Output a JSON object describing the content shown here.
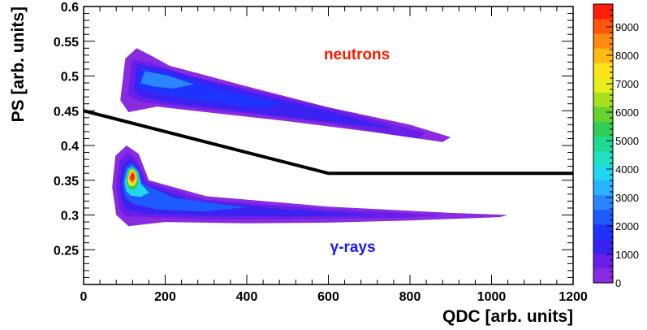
{
  "chart_data": {
    "type": "heatmap",
    "title": "",
    "xlabel": "QDC [arb. units]",
    "ylabel": "PS [arb. units]",
    "xlim": [
      0,
      1200
    ],
    "ylim": [
      0.2,
      0.6
    ],
    "x_ticks": [
      0,
      200,
      400,
      600,
      800,
      1000,
      1200
    ],
    "y_ticks": [
      0.25,
      0.3,
      0.35,
      0.4,
      0.45,
      0.5,
      0.55,
      0.6
    ],
    "x_tick_labels": [
      "0",
      "200",
      "400",
      "600",
      "800",
      "1000",
      "1200"
    ],
    "y_tick_labels": [
      "0.25",
      "0.3",
      "0.35",
      "0.4",
      "0.45",
      "0.5",
      "0.55",
      "0.6"
    ],
    "colorbar": {
      "range": [
        0,
        9800
      ],
      "ticks": [
        0,
        1000,
        2000,
        3000,
        4000,
        5000,
        6000,
        7000,
        8000,
        9000
      ],
      "tick_labels": [
        "0",
        "1000",
        "2000",
        "3000",
        "4000",
        "5000",
        "6000",
        "7000",
        "8000",
        "9000"
      ],
      "colors": [
        "#8a2be2",
        "#6a1fe8",
        "#3a22f0",
        "#1e33ff",
        "#1e5bff",
        "#2a86ff",
        "#28b2ff",
        "#21d6f0",
        "#1fe0c0",
        "#20d890",
        "#33cc55",
        "#66d22e",
        "#a8e020",
        "#e6f01c",
        "#ffe31a",
        "#ffbb14",
        "#ff8a10",
        "#ff560c",
        "#ff1e08"
      ]
    },
    "separation_line": {
      "x": [
        0,
        600,
        1200
      ],
      "y": [
        0.45,
        0.36,
        0.36
      ],
      "color": "#000000"
    },
    "bands": [
      {
        "label": "neutrons",
        "label_color": "#ff1a00",
        "label_position": [
          670,
          0.524
        ],
        "peak": [
          120,
          0.497
        ],
        "peak_count": 4200,
        "contours": [
          {
            "level": 150,
            "polygon": [
              [
                90,
                0.465
              ],
              [
                102,
                0.525
              ],
              [
                130,
                0.54
              ],
              [
                170,
                0.528
              ],
              [
                210,
                0.515
              ],
              [
                400,
                0.485
              ],
              [
                600,
                0.455
              ],
              [
                800,
                0.43
              ],
              [
                900,
                0.412
              ],
              [
                880,
                0.405
              ],
              [
                700,
                0.42
              ],
              [
                500,
                0.435
              ],
              [
                300,
                0.448
              ],
              [
                180,
                0.456
              ],
              [
                110,
                0.448
              ]
            ]
          },
          {
            "level": 600,
            "polygon": [
              [
                108,
                0.472
              ],
              [
                118,
                0.524
              ],
              [
                160,
                0.52
              ],
              [
                260,
                0.5
              ],
              [
                450,
                0.475
              ],
              [
                650,
                0.447
              ],
              [
                840,
                0.418
              ],
              [
                820,
                0.41
              ],
              [
                600,
                0.432
              ],
              [
                400,
                0.446
              ],
              [
                220,
                0.457
              ],
              [
                140,
                0.463
              ]
            ]
          },
          {
            "level": 1200,
            "polygon": [
              [
                122,
                0.478
              ],
              [
                130,
                0.517
              ],
              [
                200,
                0.51
              ],
              [
                400,
                0.478
              ],
              [
                600,
                0.45
              ],
              [
                760,
                0.424
              ],
              [
                560,
                0.437
              ],
              [
                350,
                0.452
              ],
              [
                200,
                0.462
              ],
              [
                145,
                0.47
              ]
            ]
          },
          {
            "level": 2000,
            "polygon": [
              [
                132,
                0.484
              ],
              [
                140,
                0.512
              ],
              [
                200,
                0.505
              ],
              [
                340,
                0.48
              ],
              [
                500,
                0.458
              ],
              [
                420,
                0.455
              ],
              [
                260,
                0.466
              ],
              [
                170,
                0.476
              ]
            ]
          },
          {
            "level": 3000,
            "polygon": [
              [
                140,
                0.49
              ],
              [
                150,
                0.507
              ],
              [
                210,
                0.5
              ],
              [
                270,
                0.488
              ],
              [
                220,
                0.482
              ],
              [
                170,
                0.485
              ]
            ]
          }
        ]
      },
      {
        "label": "γ-rays",
        "label_color": "#1a1aff",
        "label_position": [
          660,
          0.247
        ],
        "peak": [
          115,
          0.356
        ],
        "peak_count": 9700,
        "contours": [
          {
            "level": 150,
            "polygon": [
              [
                70,
                0.34
              ],
              [
                78,
                0.385
              ],
              [
                105,
                0.4
              ],
              [
                135,
                0.388
              ],
              [
                160,
                0.35
              ],
              [
                300,
                0.327
              ],
              [
                600,
                0.312
              ],
              [
                900,
                0.303
              ],
              [
                1040,
                0.3
              ],
              [
                1020,
                0.297
              ],
              [
                800,
                0.292
              ],
              [
                600,
                0.289
              ],
              [
                400,
                0.288
              ],
              [
                200,
                0.29
              ],
              [
                110,
                0.284
              ],
              [
                80,
                0.3
              ]
            ]
          },
          {
            "level": 700,
            "polygon": [
              [
                80,
                0.34
              ],
              [
                88,
                0.378
              ],
              [
                110,
                0.39
              ],
              [
                132,
                0.378
              ],
              [
                155,
                0.348
              ],
              [
                300,
                0.322
              ],
              [
                600,
                0.308
              ],
              [
                880,
                0.3
              ],
              [
                780,
                0.296
              ],
              [
                500,
                0.294
              ],
              [
                300,
                0.294
              ],
              [
                150,
                0.297
              ],
              [
                100,
                0.298
              ],
              [
                88,
                0.31
              ]
            ]
          },
          {
            "level": 1500,
            "polygon": [
              [
                88,
                0.342
              ],
              [
                95,
                0.372
              ],
              [
                115,
                0.382
              ],
              [
                134,
                0.37
              ],
              [
                150,
                0.345
              ],
              [
                260,
                0.322
              ],
              [
                500,
                0.308
              ],
              [
                720,
                0.3
              ],
              [
                500,
                0.298
              ],
              [
                300,
                0.299
              ],
              [
                150,
                0.302
              ],
              [
                105,
                0.308
              ],
              [
                95,
                0.318
              ]
            ]
          },
          {
            "level": 2500,
            "polygon": [
              [
                95,
                0.345
              ],
              [
                102,
                0.368
              ],
              [
                118,
                0.375
              ],
              [
                134,
                0.365
              ],
              [
                145,
                0.345
              ],
              [
                220,
                0.325
              ],
              [
                400,
                0.311
              ],
              [
                300,
                0.305
              ],
              [
                180,
                0.308
              ],
              [
                120,
                0.316
              ],
              [
                102,
                0.325
              ]
            ]
          },
          {
            "level": 4000,
            "polygon": [
              [
                100,
                0.348
              ],
              [
                108,
                0.366
              ],
              [
                120,
                0.37
              ],
              [
                134,
                0.362
              ],
              [
                140,
                0.345
              ],
              [
                160,
                0.332
              ],
              [
                140,
                0.326
              ],
              [
                115,
                0.328
              ],
              [
                104,
                0.335
              ]
            ]
          },
          {
            "level": 5500,
            "polygon": [
              [
                105,
                0.35
              ],
              [
                110,
                0.365
              ],
              [
                121,
                0.368
              ],
              [
                131,
                0.361
              ],
              [
                135,
                0.347
              ],
              [
                128,
                0.337
              ],
              [
                115,
                0.336
              ],
              [
                107,
                0.342
              ]
            ]
          },
          {
            "level": 7000,
            "polygon": [
              [
                108,
                0.351
              ],
              [
                113,
                0.364
              ],
              [
                121,
                0.366
              ],
              [
                129,
                0.36
              ],
              [
                131,
                0.35
              ],
              [
                124,
                0.342
              ],
              [
                114,
                0.342
              ],
              [
                109,
                0.346
              ]
            ]
          },
          {
            "level": 8500,
            "polygon": [
              [
                111,
                0.352
              ],
              [
                115,
                0.362
              ],
              [
                122,
                0.363
              ],
              [
                127,
                0.358
              ],
              [
                127,
                0.351
              ],
              [
                121,
                0.346
              ],
              [
                115,
                0.347
              ]
            ]
          },
          {
            "level": 9500,
            "polygon": [
              [
                114,
                0.353
              ],
              [
                117,
                0.359
              ],
              [
                122,
                0.36
              ],
              [
                125,
                0.356
              ],
              [
                124,
                0.352
              ],
              [
                119,
                0.349
              ]
            ]
          }
        ]
      }
    ]
  }
}
